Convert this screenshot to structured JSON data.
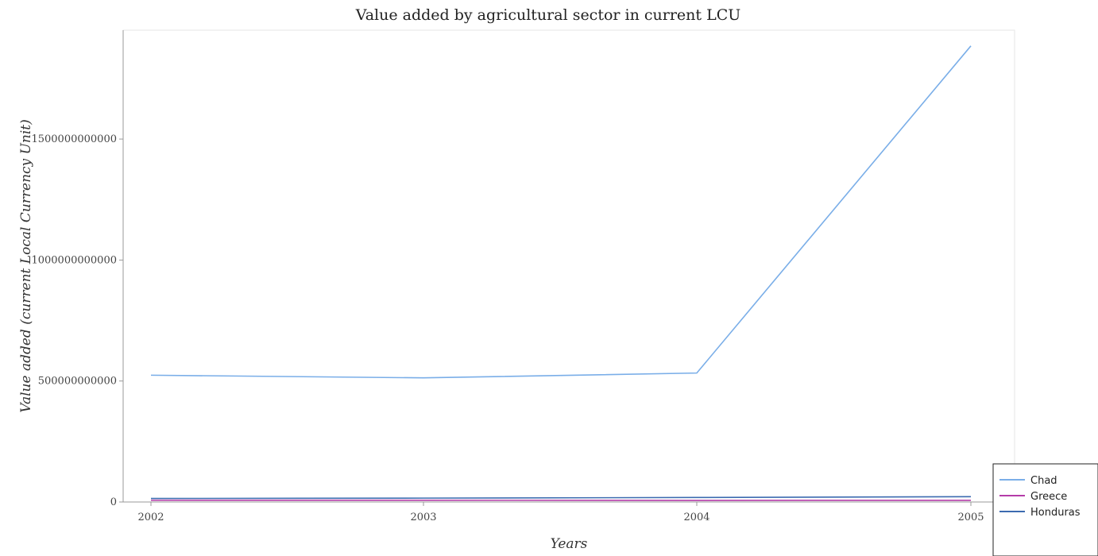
{
  "chart_data": {
    "type": "line",
    "title": "Value added by agricultural sector in current LCU",
    "xlabel": "Years",
    "ylabel": "Value added (current Local Currency Unit)",
    "categories": [
      "2002",
      "2003",
      "2004",
      "2005"
    ],
    "ylim": [
      0,
      1950000000000
    ],
    "yticks": [
      0,
      500000000000,
      1000000000000,
      1500000000000
    ],
    "ytick_labels": [
      "0",
      "500000000000",
      "1000000000000",
      "1500000000000"
    ],
    "grid": false,
    "legend_position": "bottom-right",
    "series": [
      {
        "name": "Chad",
        "color": "#7aaee8",
        "values": [
          524000000000,
          513000000000,
          533000000000,
          1885000000000
        ]
      },
      {
        "name": "Greece",
        "color": "#b43ca8",
        "values": [
          7000000000,
          7200000000,
          6500000000,
          6800000000
        ]
      },
      {
        "name": "Honduras",
        "color": "#3c6bb0",
        "values": [
          14500000000,
          16000000000,
          18500000000,
          22000000000
        ]
      }
    ]
  }
}
